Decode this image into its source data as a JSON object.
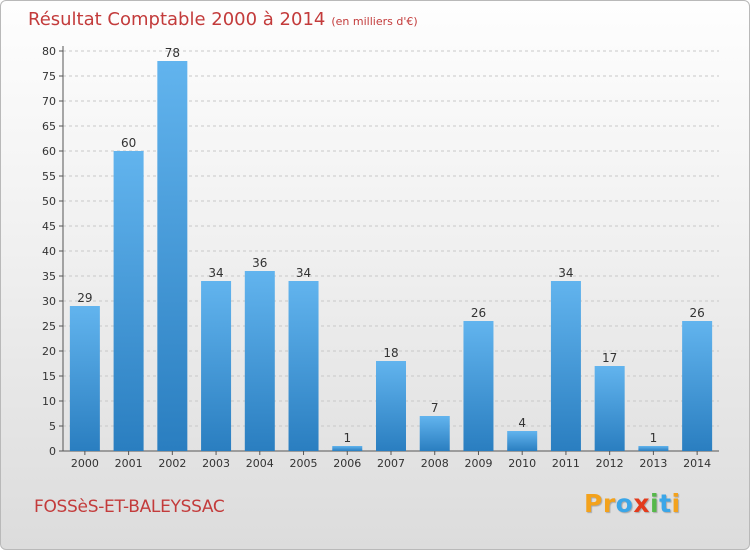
{
  "header": {
    "title": "Résultat Comptable 2000 à 2014",
    "unit": "(en milliers d'€)"
  },
  "footer": {
    "commune": "FOSSèS-ET-BALEYSSAC",
    "logo_letters": [
      "P",
      "r",
      "o",
      "x",
      "i",
      "t",
      "i"
    ]
  },
  "colors": {
    "title": "#c33b3b",
    "bar_top": "#62b4ee",
    "bar_bottom": "#2a7ec0",
    "grid": "#c8c8c8",
    "logo_letters": [
      "#f3a21c",
      "#f3a21c",
      "#3aa6e8",
      "#e33b1c",
      "#56b84a",
      "#3aa6e8",
      "#f3a21c"
    ]
  },
  "chart_data": {
    "type": "bar",
    "title": "Résultat Comptable 2000 à 2014",
    "ylabel": "en milliers d'€",
    "xlabel": "",
    "categories": [
      "2000",
      "2001",
      "2002",
      "2003",
      "2004",
      "2005",
      "2006",
      "2007",
      "2008",
      "2009",
      "2010",
      "2011",
      "2012",
      "2013",
      "2014"
    ],
    "values": [
      29,
      60,
      78,
      34,
      36,
      34,
      1,
      18,
      7,
      26,
      4,
      34,
      17,
      1,
      26
    ],
    "ylim": [
      0,
      80
    ],
    "yticks": [
      0,
      5,
      10,
      15,
      20,
      25,
      30,
      35,
      40,
      45,
      50,
      55,
      60,
      65,
      70,
      75,
      80
    ],
    "grid": true
  }
}
